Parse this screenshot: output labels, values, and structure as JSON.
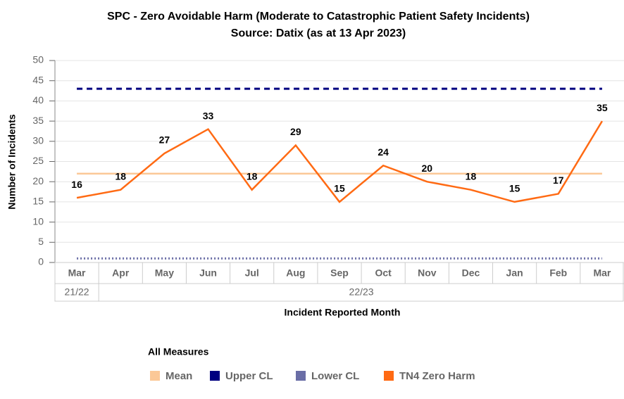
{
  "chart_data": {
    "type": "line",
    "title": "SPC - Zero Avoidable Harm (Moderate to Catastrophic Patient Safety Incidents)",
    "subtitle": "Source: Datix (as at 13 Apr 2023)",
    "x_label": "Incident Reported Month",
    "y_label": "Number of Incidents",
    "legend_title": "All Measures",
    "categories": [
      "Mar",
      "Apr",
      "May",
      "Jun",
      "Jul",
      "Aug",
      "Sep",
      "Oct",
      "Nov",
      "Dec",
      "Jan",
      "Feb",
      "Mar"
    ],
    "category_groups": [
      {
        "label": "21/22",
        "count": 1
      },
      {
        "label": "22/23",
        "count": 12
      }
    ],
    "series": [
      {
        "name": "Mean",
        "color": "#fbc897",
        "dash": "solid",
        "values": [
          22,
          22,
          22,
          22,
          22,
          22,
          22,
          22,
          22,
          22,
          22,
          22,
          22
        ]
      },
      {
        "name": "Upper CL",
        "color": "#000080",
        "dash": "dashed",
        "values": [
          43,
          43,
          43,
          43,
          43,
          43,
          43,
          43,
          43,
          43,
          43,
          43,
          43
        ]
      },
      {
        "name": "Lower CL",
        "color": "#6a6ea6",
        "dash": "dotted",
        "values": [
          1,
          1,
          1,
          1,
          1,
          1,
          1,
          1,
          1,
          1,
          1,
          1,
          1
        ]
      },
      {
        "name": "TN4 Zero Harm",
        "color": "#ff6a13",
        "dash": "solid",
        "labels": true,
        "values": [
          16,
          18,
          27,
          33,
          18,
          29,
          15,
          24,
          20,
          18,
          15,
          17,
          35
        ]
      }
    ],
    "ylim": [
      0,
      50
    ],
    "yticks": [
      0,
      5,
      10,
      15,
      20,
      25,
      30,
      35,
      40,
      45,
      50
    ],
    "grid": true
  }
}
